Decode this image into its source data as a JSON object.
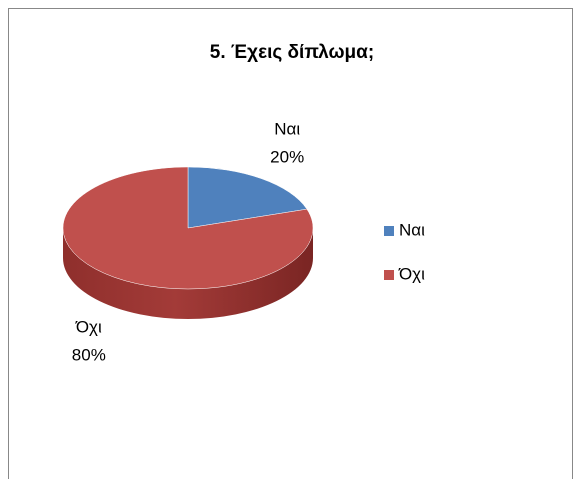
{
  "chart_data": {
    "type": "pie",
    "title": "5. Έχεις δίπλωμα;",
    "categories": [
      "Ναι",
      "Όχι"
    ],
    "values": [
      20,
      80
    ],
    "value_labels": [
      "20%",
      "80%"
    ],
    "colors": [
      "#4f81bd",
      "#c0504d"
    ],
    "legend": "right"
  }
}
